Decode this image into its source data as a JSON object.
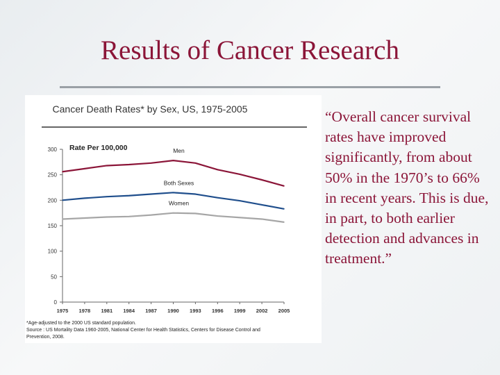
{
  "slide": {
    "title": "Results of Cancer Research",
    "quote": "“Overall cancer survival rates have improved significantly, from about 50% in the 1970’s to 66% in recent years.  This is due, in part, to both earlier detection and advances in treatment.”"
  },
  "chart_data": {
    "type": "line",
    "title": "Cancer Death Rates* by Sex, US, 1975-2005",
    "ylabel": "Rate Per 100,000",
    "xlabel": "",
    "ylim": [
      0,
      300
    ],
    "xlim": [
      1975,
      2005
    ],
    "x_ticks": [
      "1975",
      "1978",
      "1981",
      "1984",
      "1987",
      "1990",
      "1993",
      "1996",
      "1999",
      "2002",
      "2005"
    ],
    "y_ticks": [
      "0",
      "50",
      "100",
      "150",
      "200",
      "250",
      "300"
    ],
    "grid": false,
    "series": [
      {
        "name": "Men",
        "color": "#8b1538",
        "x": [
          1975,
          1978,
          1981,
          1984,
          1987,
          1990,
          1993,
          1996,
          1999,
          2002,
          2005
        ],
        "values": [
          256,
          262,
          268,
          270,
          273,
          278,
          273,
          260,
          251,
          240,
          228
        ]
      },
      {
        "name": "Both Sexes",
        "color": "#1f4e8c",
        "x": [
          1975,
          1978,
          1981,
          1984,
          1987,
          1990,
          1993,
          1996,
          1999,
          2002,
          2005
        ],
        "values": [
          200,
          204,
          207,
          209,
          212,
          215,
          212,
          205,
          199,
          191,
          183
        ]
      },
      {
        "name": "Women",
        "color": "#a6a6a6",
        "x": [
          1975,
          1978,
          1981,
          1984,
          1987,
          1990,
          1993,
          1996,
          1999,
          2002,
          2005
        ],
        "values": [
          163,
          165,
          167,
          168,
          171,
          175,
          174,
          169,
          166,
          163,
          157
        ]
      }
    ],
    "footnotes": [
      "*Age-adjusted to the 2000 US standard population.",
      "Source : US Mortality Data 1960-2005, National Center for Health Statistics, Centers for Disease Control and",
      "Prevention, 2008."
    ]
  }
}
